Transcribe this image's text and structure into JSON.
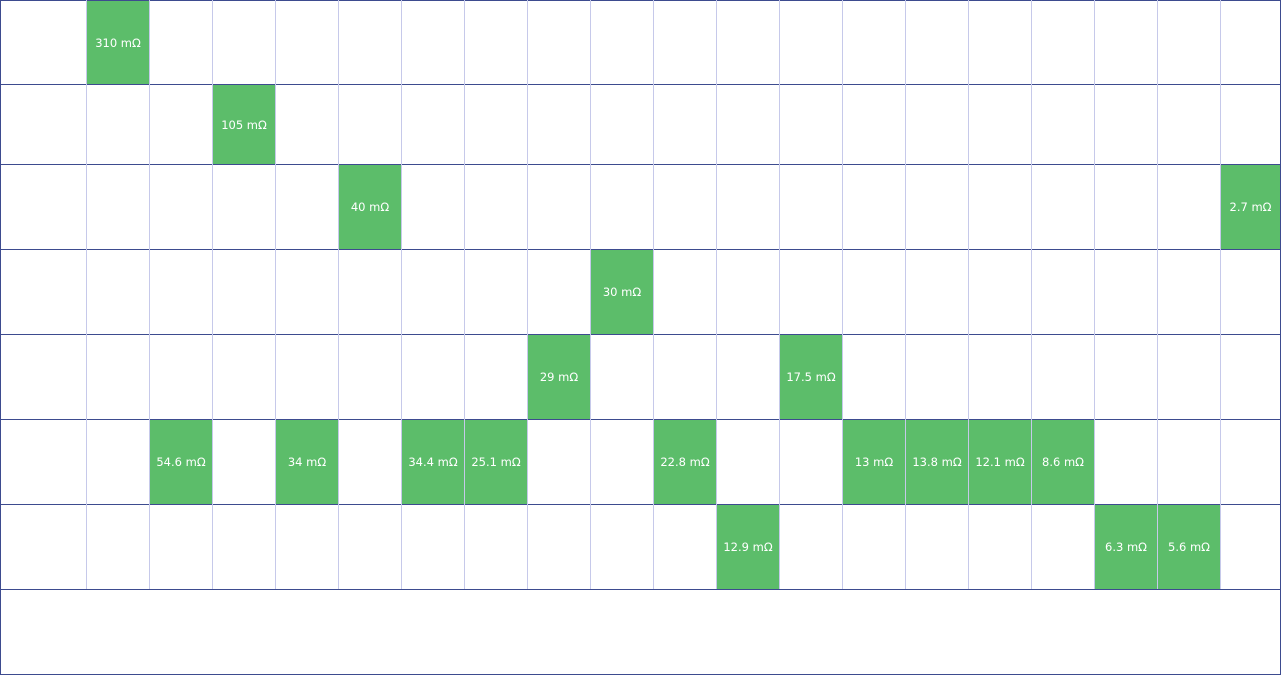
{
  "grid": {
    "rows": [
      [
        {
          "label": "310 mΩ"
        },
        null,
        null,
        null,
        null,
        null,
        null,
        null,
        null,
        null,
        null,
        null,
        null,
        null,
        null,
        null,
        null,
        null,
        null
      ],
      [
        null,
        null,
        {
          "label": "105 mΩ"
        },
        null,
        null,
        null,
        null,
        null,
        null,
        null,
        null,
        null,
        null,
        null,
        null,
        null,
        null,
        null,
        null
      ],
      [
        null,
        null,
        null,
        null,
        {
          "label": "40 mΩ"
        },
        null,
        null,
        null,
        null,
        null,
        null,
        null,
        null,
        null,
        null,
        null,
        null,
        null,
        {
          "label": "2.7 mΩ"
        }
      ],
      [
        null,
        null,
        null,
        null,
        null,
        null,
        null,
        null,
        {
          "label": "30 mΩ"
        },
        null,
        null,
        null,
        null,
        null,
        null,
        null,
        null,
        null,
        null
      ],
      [
        null,
        null,
        null,
        null,
        null,
        null,
        null,
        {
          "label": "29 mΩ"
        },
        null,
        null,
        null,
        {
          "label": "17.5 mΩ"
        },
        null,
        null,
        null,
        null,
        null,
        null,
        null
      ],
      [
        null,
        {
          "label": "54.6 mΩ"
        },
        null,
        {
          "label": "34 mΩ"
        },
        null,
        {
          "label": "34.4 mΩ"
        },
        {
          "label": "25.1 mΩ"
        },
        null,
        null,
        {
          "label": "22.8 mΩ"
        },
        null,
        null,
        {
          "label": "13 mΩ"
        },
        {
          "label": "13.8 mΩ"
        },
        {
          "label": "12.1 mΩ"
        },
        {
          "label": "8.6 mΩ"
        },
        null,
        null,
        null
      ],
      [
        null,
        null,
        null,
        null,
        null,
        null,
        null,
        null,
        null,
        null,
        {
          "label": "12.9 mΩ"
        },
        null,
        null,
        null,
        null,
        null,
        {
          "label": "6.3 mΩ"
        },
        {
          "label": "5.6 mΩ"
        },
        null
      ]
    ]
  }
}
